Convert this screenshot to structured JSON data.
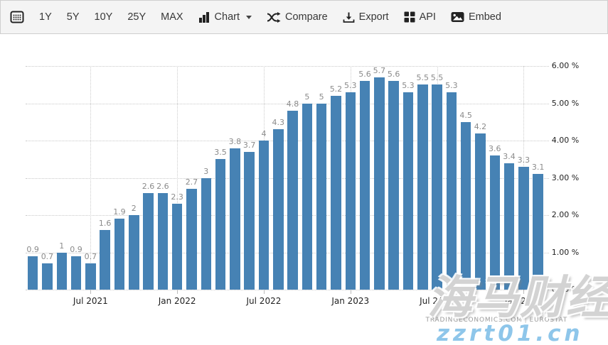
{
  "toolbar": {
    "range_buttons": [
      "1Y",
      "5Y",
      "10Y",
      "25Y",
      "MAX"
    ],
    "chart_menu_label": "Chart",
    "compare_label": "Compare",
    "export_label": "Export",
    "api_label": "API",
    "embed_label": "Embed",
    "icons": [
      "calendar-icon",
      "bar-chart-icon",
      "caret-down-icon",
      "shuffle-icon",
      "download-icon",
      "grid-squares-icon",
      "image-icon"
    ]
  },
  "chart_data": {
    "type": "bar",
    "values": [
      0.9,
      0.7,
      1,
      0.9,
      0.7,
      1.6,
      1.9,
      2,
      2.6,
      2.6,
      2.3,
      2.7,
      3,
      3.5,
      3.8,
      3.7,
      4,
      4.3,
      4.8,
      5,
      5,
      5.2,
      5.3,
      5.6,
      5.7,
      5.6,
      5.3,
      5.5,
      5.5,
      5.3,
      4.5,
      4.2,
      3.6,
      3.4,
      3.3,
      3.1
    ],
    "x_ticks": [
      {
        "index": 4,
        "label": "Jul 2021"
      },
      {
        "index": 10,
        "label": "Jan 2022"
      },
      {
        "index": 16,
        "label": "Jul 2022"
      },
      {
        "index": 22,
        "label": "Jan 2023"
      },
      {
        "index": 28,
        "label": "Jul 2023"
      },
      {
        "index": 34,
        "label": "Jan 2024"
      }
    ],
    "y_ticks": [
      {
        "value": 6,
        "label": "6.00 %"
      },
      {
        "value": 5,
        "label": "5.00 %"
      },
      {
        "value": 4,
        "label": "4.00 %"
      },
      {
        "value": 3,
        "label": "3.00 %"
      },
      {
        "value": 2,
        "label": "2.00 %"
      },
      {
        "value": 1,
        "label": "1.00 %"
      },
      {
        "value": 0,
        "label": "0.00 %"
      }
    ],
    "ylim": [
      0,
      6
    ],
    "grid": true,
    "legend": "none",
    "bar_color": "#4682b4",
    "data_labels_shown": true
  },
  "attribution": {
    "left": "TRADINGECONOMICS.COM",
    "divider": "|",
    "right": "EUROSTAT"
  },
  "watermark": {
    "cn_text": "海马财经",
    "domain_text": "zzrt01.cn",
    "gray_color": "#a8a8a8",
    "blue_color": "#8ec6ea"
  },
  "colors": {
    "bar": "#4682b4",
    "gridline": "#c9c9c9",
    "bar_label": "#8b8b8b",
    "axis_text": "#1f1f1f",
    "toolbar_bg": "#f4f4f4",
    "toolbar_border": "#cfcfcf",
    "toolbar_text": "#383838"
  }
}
